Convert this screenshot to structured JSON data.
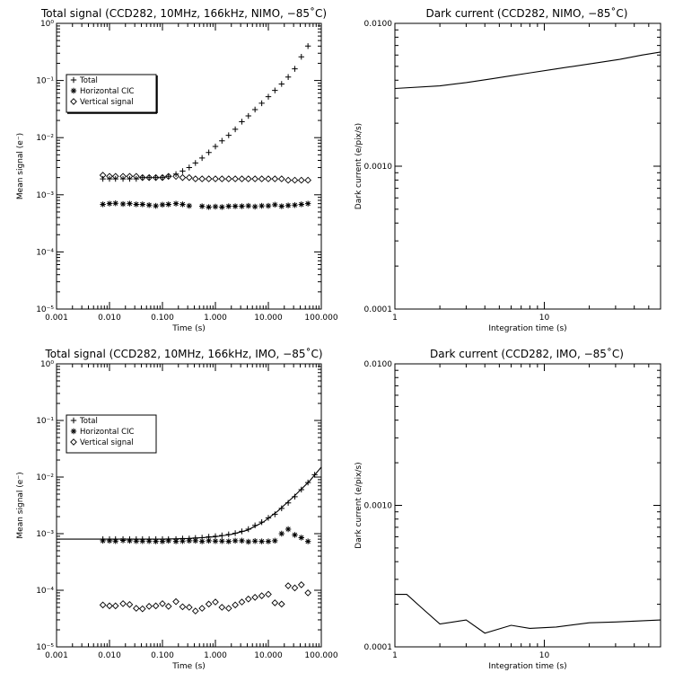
{
  "chart_data": [
    {
      "type": "scatter",
      "title": "Total signal (CCD282, 10MHz, 166kHz, NIMO, −85˚C)",
      "xlabel": "Time (s)",
      "ylabel": "Mean signal (e⁻)",
      "xscale": "log",
      "yscale": "log",
      "xlim": [
        0.001,
        100
      ],
      "ylim": [
        1e-05,
        1
      ],
      "xticks": [
        "0.001",
        "0.010",
        "0.100",
        "1.000",
        "10.000",
        "100.000"
      ],
      "yticks": [
        "10⁻⁵",
        "10⁻⁴",
        "10⁻³",
        "10⁻²",
        "10⁻¹",
        "10⁰"
      ],
      "legend": "upper-left",
      "series": [
        {
          "name": "Total",
          "marker": "plus",
          "x": [
            0.0075,
            0.01,
            0.013,
            0.018,
            0.024,
            0.032,
            0.042,
            0.056,
            0.075,
            0.1,
            0.13,
            0.18,
            0.24,
            0.32,
            0.42,
            0.56,
            0.75,
            1.0,
            1.33,
            1.78,
            2.37,
            3.16,
            4.2,
            5.6,
            7.5,
            10,
            13.3,
            17.8,
            23.7,
            31.6,
            42,
            56
          ],
          "y": [
            0.0019,
            0.0019,
            0.0019,
            0.0019,
            0.0019,
            0.0019,
            0.002,
            0.002,
            0.002,
            0.002,
            0.0021,
            0.0023,
            0.0026,
            0.003,
            0.0036,
            0.0044,
            0.0055,
            0.007,
            0.0088,
            0.011,
            0.014,
            0.019,
            0.024,
            0.031,
            0.04,
            0.052,
            0.067,
            0.087,
            0.115,
            0.16,
            0.26,
            0.4
          ]
        },
        {
          "name": "Horizontal CIC",
          "marker": "asterisk",
          "x": [
            0.0075,
            0.01,
            0.013,
            0.018,
            0.024,
            0.032,
            0.042,
            0.056,
            0.075,
            0.1,
            0.13,
            0.18,
            0.24,
            0.32,
            0.56,
            0.75,
            1.0,
            1.33,
            1.78,
            2.37,
            3.16,
            4.2,
            5.6,
            7.5,
            10,
            13.3,
            17.8,
            23.7,
            31.6,
            42,
            56
          ],
          "y": [
            0.00068,
            0.0007,
            0.00071,
            0.00069,
            0.0007,
            0.00068,
            0.00068,
            0.00066,
            0.00064,
            0.00067,
            0.00068,
            0.0007,
            0.00068,
            0.00064,
            0.00063,
            0.00061,
            0.00062,
            0.00061,
            0.00063,
            0.00063,
            0.00063,
            0.00064,
            0.00062,
            0.00064,
            0.00064,
            0.00067,
            0.00063,
            0.00065,
            0.00066,
            0.00068,
            0.0007
          ]
        },
        {
          "name": "Vertical signal",
          "marker": "diamond",
          "x": [
            0.0075,
            0.01,
            0.013,
            0.018,
            0.024,
            0.032,
            0.042,
            0.056,
            0.075,
            0.1,
            0.13,
            0.18,
            0.24,
            0.32,
            0.42,
            0.56,
            0.75,
            1.0,
            1.33,
            1.78,
            2.37,
            3.16,
            4.2,
            5.6,
            7.5,
            10,
            13.3,
            17.8,
            23.7,
            31.6,
            42,
            56
          ],
          "y": [
            0.0022,
            0.0021,
            0.0021,
            0.0021,
            0.0021,
            0.0021,
            0.002,
            0.002,
            0.002,
            0.002,
            0.0021,
            0.0021,
            0.002,
            0.002,
            0.0019,
            0.0019,
            0.0019,
            0.0019,
            0.0019,
            0.0019,
            0.0019,
            0.0019,
            0.0019,
            0.0019,
            0.0019,
            0.0019,
            0.0019,
            0.0019,
            0.0018,
            0.0018,
            0.0018,
            0.0018
          ]
        }
      ]
    },
    {
      "type": "line",
      "title": "Dark current (CCD282, NIMO, −85˚C)",
      "xlabel": "Integration time (s)",
      "ylabel": "Dark current (e/pix/s)",
      "xscale": "log",
      "yscale": "log",
      "xlim": [
        1,
        60
      ],
      "ylim": [
        0.0001,
        0.01
      ],
      "xticks": [
        "1",
        "10"
      ],
      "yticks": [
        "0.0001",
        "0.0010",
        "0.0100"
      ],
      "series": [
        {
          "x": [
            1,
            2,
            3,
            4.5,
            6,
            8,
            12,
            20,
            32,
            45,
            60
          ],
          "y": [
            0.0035,
            0.00365,
            0.00385,
            0.0041,
            0.0043,
            0.0045,
            0.0048,
            0.0052,
            0.0056,
            0.006,
            0.0063
          ]
        }
      ]
    },
    {
      "type": "scatter",
      "title": "Total signal (CCD282, 10MHz, 166kHz, IMO, −85˚C)",
      "xlabel": "Time (s)",
      "ylabel": "Mean signal (e⁻)",
      "xscale": "log",
      "yscale": "log",
      "xlim": [
        0.001,
        100
      ],
      "ylim": [
        1e-05,
        1
      ],
      "xticks": [
        "0.001",
        "0.010",
        "0.100",
        "1.000",
        "10.000",
        "100.000"
      ],
      "yticks": [
        "10⁻⁵",
        "10⁻⁴",
        "10⁻³",
        "10⁻²",
        "10⁻¹",
        "10⁰"
      ],
      "legend": "upper-left",
      "fit_line": {
        "x": [
          0.001,
          0.01,
          0.1,
          0.3,
          1,
          2,
          4,
          8,
          15,
          30,
          60,
          100
        ],
        "y": [
          0.0008,
          0.0008,
          0.0008,
          0.00082,
          0.00088,
          0.00097,
          0.00115,
          0.0016,
          0.0025,
          0.0045,
          0.0085,
          0.015
        ]
      },
      "series": [
        {
          "name": "Total",
          "marker": "plus",
          "x": [
            0.0075,
            0.01,
            0.013,
            0.018,
            0.024,
            0.032,
            0.042,
            0.056,
            0.075,
            0.1,
            0.13,
            0.18,
            0.24,
            0.32,
            0.42,
            0.56,
            0.75,
            1.0,
            1.33,
            1.78,
            2.37,
            3.16,
            4.2,
            5.6,
            7.5,
            10,
            13.3,
            17.8,
            23.7,
            31.6,
            42,
            56,
            75
          ],
          "y": [
            0.0008,
            0.0008,
            0.0008,
            0.0008,
            0.0008,
            0.0008,
            0.0008,
            0.0008,
            0.0008,
            0.0008,
            0.0008,
            0.0008,
            0.00082,
            0.00082,
            0.00084,
            0.00085,
            0.00088,
            0.0009,
            0.00093,
            0.00097,
            0.00102,
            0.0011,
            0.0012,
            0.0014,
            0.0016,
            0.0019,
            0.0022,
            0.0028,
            0.0035,
            0.0045,
            0.006,
            0.008,
            0.011
          ]
        },
        {
          "name": "Horizontal CIC",
          "marker": "asterisk",
          "x": [
            0.0075,
            0.01,
            0.013,
            0.018,
            0.024,
            0.032,
            0.042,
            0.056,
            0.075,
            0.1,
            0.13,
            0.18,
            0.24,
            0.32,
            0.42,
            0.56,
            0.75,
            1.0,
            1.33,
            1.78,
            2.37,
            3.16,
            4.2,
            5.6,
            7.5,
            10,
            13.3,
            17.8,
            23.7,
            31.6,
            42,
            56
          ],
          "y": [
            0.00075,
            0.00075,
            0.00074,
            0.00076,
            0.00075,
            0.00074,
            0.00074,
            0.00074,
            0.00073,
            0.00073,
            0.00075,
            0.00073,
            0.00074,
            0.00075,
            0.00075,
            0.00073,
            0.00075,
            0.00074,
            0.00074,
            0.00073,
            0.00075,
            0.00075,
            0.00072,
            0.00074,
            0.00073,
            0.00073,
            0.00075,
            0.001,
            0.0012,
            0.00095,
            0.00085,
            0.00073
          ]
        },
        {
          "name": "Vertical signal",
          "marker": "diamond",
          "x": [
            0.0075,
            0.01,
            0.013,
            0.018,
            0.024,
            0.032,
            0.042,
            0.056,
            0.075,
            0.1,
            0.13,
            0.18,
            0.24,
            0.32,
            0.42,
            0.56,
            0.75,
            1.0,
            1.33,
            1.78,
            2.37,
            3.16,
            4.2,
            5.6,
            7.5,
            10,
            13.3,
            17.8,
            23.7,
            31.6,
            42,
            56
          ],
          "y": [
            5.5e-05,
            5.3e-05,
            5.3e-05,
            5.8e-05,
            5.6e-05,
            4.8e-05,
            4.7e-05,
            5.2e-05,
            5.3e-05,
            5.8e-05,
            5.2e-05,
            6.3e-05,
            5.1e-05,
            5e-05,
            4.3e-05,
            4.8e-05,
            5.7e-05,
            6.2e-05,
            5e-05,
            4.8e-05,
            5.5e-05,
            6.2e-05,
            7e-05,
            7.5e-05,
            8e-05,
            8.5e-05,
            6e-05,
            5.7e-05,
            0.00012,
            0.00011,
            0.000125,
            9e-05
          ]
        }
      ]
    },
    {
      "type": "line",
      "title": "Dark current (CCD282, IMO, −85˚C)",
      "xlabel": "Integration time (s)",
      "ylabel": "Dark current (e/pix/s)",
      "xscale": "log",
      "yscale": "log",
      "xlim": [
        1,
        60
      ],
      "ylim": [
        0.0001,
        0.01
      ],
      "xticks": [
        "1",
        "10"
      ],
      "yticks": [
        "0.0001",
        "0.0010",
        "0.0100"
      ],
      "series": [
        {
          "x": [
            1,
            1.2,
            1.5,
            2,
            3,
            4,
            6,
            8,
            12,
            20,
            30,
            60
          ],
          "y": [
            0.000235,
            0.000235,
            0.00019,
            0.000145,
            0.000155,
            0.000125,
            0.000142,
            0.000135,
            0.000138,
            0.000148,
            0.00015,
            0.000155
          ]
        }
      ]
    }
  ]
}
